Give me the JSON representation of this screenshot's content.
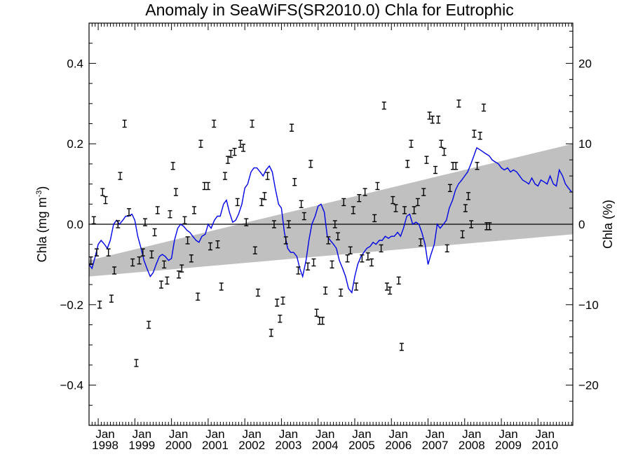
{
  "chart_data": {
    "type": "line",
    "title": "Anomaly in SeaWiFS(SR2010.0) Chla for Eutrophic",
    "ylabel_left": "Chla (mg m",
    "ylabel_left_superscript": "-3",
    "ylabel_left_suffix": ")",
    "ylabel_right": "Chla (%)",
    "xlim": [
      1997.75,
      2010.95
    ],
    "ylim": [
      -0.5,
      0.5
    ],
    "ylim_right": [
      -25,
      25
    ],
    "yticks_left": [
      {
        "value": 0.4,
        "label": "0.4"
      },
      {
        "value": 0.2,
        "label": "0.2"
      },
      {
        "value": 0.0,
        "label": "0.0"
      },
      {
        "value": -0.2,
        "label": "−0.2"
      },
      {
        "value": -0.4,
        "label": "−0.4"
      }
    ],
    "yticks_right": [
      {
        "value": 20,
        "label": "20"
      },
      {
        "value": 10,
        "label": "10"
      },
      {
        "value": 0,
        "label": "0"
      },
      {
        "value": -10,
        "label": "−10"
      },
      {
        "value": -20,
        "label": "−20"
      }
    ],
    "xticks": [
      {
        "value": 1998.0,
        "month": "Jan",
        "year": "1998"
      },
      {
        "value": 1999.0,
        "month": "Jan",
        "year": "1999"
      },
      {
        "value": 2000.0,
        "month": "Jan",
        "year": "2000"
      },
      {
        "value": 2001.0,
        "month": "Jan",
        "year": "2001"
      },
      {
        "value": 2002.0,
        "month": "Jan",
        "year": "2002"
      },
      {
        "value": 2003.0,
        "month": "Jan",
        "year": "2003"
      },
      {
        "value": 2004.0,
        "month": "Jan",
        "year": "2004"
      },
      {
        "value": 2005.0,
        "month": "Jan",
        "year": "2005"
      },
      {
        "value": 2006.0,
        "month": "Jan",
        "year": "2006"
      },
      {
        "value": 2007.0,
        "month": "Jan",
        "year": "2007"
      },
      {
        "value": 2008.0,
        "month": "Jan",
        "year": "2008"
      },
      {
        "value": 2009.0,
        "month": "Jan",
        "year": "2009"
      },
      {
        "value": 2010.0,
        "month": "Jan",
        "year": "2010"
      }
    ],
    "zero_line": 0,
    "trend_band": {
      "color": "#c0c0c0",
      "upper": [
        [
          1997.75,
          -0.09
        ],
        [
          2010.95,
          0.2
        ]
      ],
      "lower": [
        [
          1997.75,
          -0.13
        ],
        [
          2010.95,
          -0.025
        ]
      ]
    },
    "smoothed_series": {
      "color": "#0000e6",
      "points": [
        [
          1997.75,
          -0.1
        ],
        [
          1997.83,
          -0.11
        ],
        [
          1997.92,
          -0.08
        ],
        [
          1998.0,
          -0.05
        ],
        [
          1998.08,
          -0.04
        ],
        [
          1998.17,
          -0.05
        ],
        [
          1998.25,
          -0.06
        ],
        [
          1998.33,
          -0.04
        ],
        [
          1998.42,
          0.0
        ],
        [
          1998.5,
          0.01
        ],
        [
          1998.58,
          0.0
        ],
        [
          1998.67,
          0.01
        ],
        [
          1998.75,
          0.02
        ],
        [
          1998.83,
          0.02
        ],
        [
          1998.92,
          0.025
        ],
        [
          1999.0,
          0.01
        ],
        [
          1999.08,
          -0.03
        ],
        [
          1999.17,
          -0.06
        ],
        [
          1999.25,
          -0.09
        ],
        [
          1999.33,
          -0.11
        ],
        [
          1999.42,
          -0.13
        ],
        [
          1999.5,
          -0.12
        ],
        [
          1999.58,
          -0.1
        ],
        [
          1999.67,
          -0.08
        ],
        [
          1999.75,
          -0.075
        ],
        [
          1999.83,
          -0.08
        ],
        [
          1999.92,
          -0.09
        ],
        [
          2000.0,
          -0.085
        ],
        [
          2000.08,
          -0.04
        ],
        [
          2000.17,
          -0.01
        ],
        [
          2000.25,
          0.0
        ],
        [
          2000.33,
          -0.005
        ],
        [
          2000.42,
          -0.015
        ],
        [
          2000.5,
          -0.02
        ],
        [
          2000.58,
          -0.03
        ],
        [
          2000.67,
          -0.04
        ],
        [
          2000.75,
          -0.045
        ],
        [
          2000.83,
          -0.03
        ],
        [
          2000.92,
          -0.025
        ],
        [
          2001.0,
          0.0
        ],
        [
          2001.08,
          -0.01
        ],
        [
          2001.17,
          0.01
        ],
        [
          2001.25,
          0.02
        ],
        [
          2001.33,
          0.02
        ],
        [
          2001.42,
          0.05
        ],
        [
          2001.5,
          0.06
        ],
        [
          2001.58,
          0.03
        ],
        [
          2001.67,
          0.005
        ],
        [
          2001.75,
          0.01
        ],
        [
          2001.83,
          0.025
        ],
        [
          2001.92,
          0.05
        ],
        [
          2002.0,
          0.09
        ],
        [
          2002.08,
          0.1
        ],
        [
          2002.17,
          0.13
        ],
        [
          2002.25,
          0.14
        ],
        [
          2002.33,
          0.14
        ],
        [
          2002.42,
          0.13
        ],
        [
          2002.5,
          0.12
        ],
        [
          2002.58,
          0.135
        ],
        [
          2002.67,
          0.145
        ],
        [
          2002.75,
          0.13
        ],
        [
          2002.83,
          0.09
        ],
        [
          2002.92,
          0.05
        ],
        [
          2003.0,
          0.04
        ],
        [
          2003.08,
          -0.02
        ],
        [
          2003.17,
          -0.06
        ],
        [
          2003.25,
          -0.07
        ],
        [
          2003.33,
          -0.07
        ],
        [
          2003.42,
          -0.08
        ],
        [
          2003.5,
          -0.11
        ],
        [
          2003.58,
          -0.13
        ],
        [
          2003.67,
          -0.09
        ],
        [
          2003.75,
          -0.04
        ],
        [
          2003.83,
          0.0
        ],
        [
          2003.92,
          0.02
        ],
        [
          2004.0,
          0.045
        ],
        [
          2004.08,
          0.05
        ],
        [
          2004.17,
          0.03
        ],
        [
          2004.25,
          -0.03
        ],
        [
          2004.33,
          -0.04
        ],
        [
          2004.42,
          -0.05
        ],
        [
          2004.5,
          -0.06
        ],
        [
          2004.58,
          -0.09
        ],
        [
          2004.67,
          -0.11
        ],
        [
          2004.75,
          -0.13
        ],
        [
          2004.83,
          -0.16
        ],
        [
          2004.92,
          -0.17
        ],
        [
          2005.0,
          -0.13
        ],
        [
          2005.08,
          -0.1
        ],
        [
          2005.17,
          -0.08
        ],
        [
          2005.25,
          -0.07
        ],
        [
          2005.33,
          -0.06
        ],
        [
          2005.42,
          -0.055
        ],
        [
          2005.5,
          -0.045
        ],
        [
          2005.58,
          -0.05
        ],
        [
          2005.67,
          -0.04
        ],
        [
          2005.75,
          -0.04
        ],
        [
          2005.83,
          -0.03
        ],
        [
          2005.92,
          -0.035
        ],
        [
          2006.0,
          -0.03
        ],
        [
          2006.08,
          -0.03
        ],
        [
          2006.17,
          -0.02
        ],
        [
          2006.25,
          -0.03
        ],
        [
          2006.33,
          -0.01
        ],
        [
          2006.42,
          0.02
        ],
        [
          2006.5,
          0.025
        ],
        [
          2006.58,
          0.0
        ],
        [
          2006.67,
          0.005
        ],
        [
          2006.75,
          0.0
        ],
        [
          2006.83,
          -0.02
        ],
        [
          2006.92,
          -0.05
        ],
        [
          2007.0,
          -0.1
        ],
        [
          2007.08,
          -0.075
        ],
        [
          2007.17,
          -0.05
        ],
        [
          2007.25,
          0.0
        ],
        [
          2007.33,
          -0.01
        ],
        [
          2007.42,
          0.0
        ],
        [
          2007.5,
          0.01
        ],
        [
          2007.58,
          0.04
        ],
        [
          2007.67,
          0.06
        ],
        [
          2007.75,
          0.085
        ],
        [
          2007.83,
          0.1
        ],
        [
          2007.92,
          0.11
        ],
        [
          2008.0,
          0.12
        ],
        [
          2008.08,
          0.13
        ],
        [
          2008.17,
          0.15
        ],
        [
          2008.25,
          0.17
        ],
        [
          2008.33,
          0.19
        ],
        [
          2008.42,
          0.185
        ],
        [
          2008.5,
          0.18
        ],
        [
          2008.58,
          0.175
        ],
        [
          2008.67,
          0.17
        ],
        [
          2008.75,
          0.16
        ],
        [
          2008.83,
          0.155
        ],
        [
          2008.92,
          0.15
        ],
        [
          2009.0,
          0.14
        ],
        [
          2009.08,
          0.135
        ],
        [
          2009.17,
          0.14
        ],
        [
          2009.25,
          0.13
        ],
        [
          2009.33,
          0.135
        ],
        [
          2009.42,
          0.13
        ],
        [
          2009.5,
          0.12
        ],
        [
          2009.58,
          0.11
        ],
        [
          2009.67,
          0.105
        ],
        [
          2009.75,
          0.1
        ],
        [
          2009.83,
          0.115
        ],
        [
          2009.92,
          0.1
        ],
        [
          2010.0,
          0.095
        ],
        [
          2010.08,
          0.11
        ],
        [
          2010.17,
          0.105
        ],
        [
          2010.25,
          0.1
        ],
        [
          2010.33,
          0.12
        ],
        [
          2010.42,
          0.1
        ],
        [
          2010.5,
          0.095
        ],
        [
          2010.58,
          0.135
        ],
        [
          2010.67,
          0.12
        ],
        [
          2010.75,
          0.1
        ],
        [
          2010.83,
          0.09
        ],
        [
          2010.92,
          0.08
        ]
      ]
    },
    "monthly_points": [
      [
        1997.8,
        -0.09
      ],
      [
        1997.88,
        0.01
      ],
      [
        1997.96,
        -0.07
      ],
      [
        1998.04,
        -0.2
      ],
      [
        1998.12,
        0.08
      ],
      [
        1998.2,
        0.06
      ],
      [
        1998.28,
        -0.07
      ],
      [
        1998.36,
        -0.185
      ],
      [
        1998.44,
        -0.115
      ],
      [
        1998.54,
        0.0
      ],
      [
        1998.6,
        0.12
      ],
      [
        1998.72,
        0.25
      ],
      [
        1998.84,
        0.03
      ],
      [
        1998.94,
        -0.095
      ],
      [
        1999.04,
        -0.345
      ],
      [
        1999.12,
        -0.09
      ],
      [
        1999.22,
        -0.07
      ],
      [
        1999.28,
        0.005
      ],
      [
        1999.38,
        -0.25
      ],
      [
        1999.46,
        -0.075
      ],
      [
        1999.54,
        -0.02
      ],
      [
        1999.62,
        0.035
      ],
      [
        1999.72,
        -0.15
      ],
      [
        1999.8,
        -0.1
      ],
      [
        1999.88,
        -0.14
      ],
      [
        1999.96,
        0.025
      ],
      [
        2000.04,
        0.145
      ],
      [
        2000.12,
        0.08
      ],
      [
        2000.2,
        -0.125
      ],
      [
        2000.28,
        -0.11
      ],
      [
        2000.36,
        0.01
      ],
      [
        2000.44,
        -0.04
      ],
      [
        2000.54,
        -0.085
      ],
      [
        2000.62,
        0.035
      ],
      [
        2000.72,
        -0.18
      ],
      [
        2000.8,
        0.2
      ],
      [
        2000.9,
        0.095
      ],
      [
        2001.0,
        0.095
      ],
      [
        2001.06,
        -0.055
      ],
      [
        2001.16,
        0.25
      ],
      [
        2001.26,
        -0.05
      ],
      [
        2001.36,
        -0.155
      ],
      [
        2001.46,
        0.12
      ],
      [
        2001.54,
        0.16
      ],
      [
        2001.62,
        0.175
      ],
      [
        2001.72,
        0.18
      ],
      [
        2001.8,
        0.055
      ],
      [
        2001.88,
        0.2
      ],
      [
        2001.96,
        0.19
      ],
      [
        2002.04,
        0.005
      ],
      [
        2002.2,
        0.25
      ],
      [
        2002.28,
        -0.065
      ],
      [
        2002.36,
        -0.17
      ],
      [
        2002.46,
        0.055
      ],
      [
        2002.54,
        0.07
      ],
      [
        2002.62,
        0.12
      ],
      [
        2002.72,
        -0.27
      ],
      [
        2002.8,
        0.0
      ],
      [
        2002.88,
        -0.195
      ],
      [
        2002.96,
        -0.235
      ],
      [
        2003.04,
        -0.19
      ],
      [
        2003.12,
        -0.04
      ],
      [
        2003.2,
        0.0
      ],
      [
        2003.28,
        0.24
      ],
      [
        2003.36,
        0.105
      ],
      [
        2003.46,
        -0.115
      ],
      [
        2003.54,
        0.05
      ],
      [
        2003.62,
        0.02
      ],
      [
        2003.72,
        -0.105
      ],
      [
        2003.8,
        0.15
      ],
      [
        2003.88,
        -0.095
      ],
      [
        2003.96,
        -0.22
      ],
      [
        2004.04,
        -0.24
      ],
      [
        2004.12,
        -0.24
      ],
      [
        2004.2,
        -0.165
      ],
      [
        2004.28,
        -0.04
      ],
      [
        2004.38,
        -0.1
      ],
      [
        2004.46,
        0.0
      ],
      [
        2004.54,
        -0.03
      ],
      [
        2004.62,
        -0.17
      ],
      [
        2004.7,
        0.055
      ],
      [
        2004.8,
        -0.085
      ],
      [
        2004.88,
        -0.065
      ],
      [
        2004.96,
        0.035
      ],
      [
        2005.04,
        -0.155
      ],
      [
        2005.12,
        0.065
      ],
      [
        2005.2,
        -0.085
      ],
      [
        2005.28,
        0.08
      ],
      [
        2005.36,
        -0.08
      ],
      [
        2005.46,
        -0.095
      ],
      [
        2005.54,
        0.015
      ],
      [
        2005.62,
        0.095
      ],
      [
        2005.72,
        -0.06
      ],
      [
        2005.8,
        0.295
      ],
      [
        2005.88,
        -0.155
      ],
      [
        2005.96,
        -0.165
      ],
      [
        2006.04,
        0.06
      ],
      [
        2006.12,
        0.04
      ],
      [
        2006.2,
        -0.14
      ],
      [
        2006.28,
        -0.305
      ],
      [
        2006.36,
        0.035
      ],
      [
        2006.44,
        0.15
      ],
      [
        2006.54,
        0.2
      ],
      [
        2006.62,
        0.035
      ],
      [
        2006.72,
        0.055
      ],
      [
        2006.8,
        -0.045
      ],
      [
        2006.88,
        0.08
      ],
      [
        2006.96,
        0.16
      ],
      [
        2007.04,
        0.27
      ],
      [
        2007.12,
        0.26
      ],
      [
        2007.2,
        0.135
      ],
      [
        2007.28,
        0.26
      ],
      [
        2007.36,
        0.2
      ],
      [
        2007.44,
        0.18
      ],
      [
        2007.52,
        -0.06
      ],
      [
        2007.6,
        0.09
      ],
      [
        2007.68,
        0.145
      ],
      [
        2007.76,
        0.145
      ],
      [
        2007.84,
        0.3
      ],
      [
        2007.94,
        -0.025
      ],
      [
        2008.02,
        0.04
      ],
      [
        2008.1,
        0.07
      ],
      [
        2008.18,
        0.0
      ],
      [
        2008.26,
        0.225
      ],
      [
        2008.34,
        0.145
      ],
      [
        2008.42,
        0.22
      ],
      [
        2008.52,
        0.29
      ],
      [
        2008.6,
        -0.005
      ],
      [
        2008.68,
        -0.005
      ]
    ],
    "colors": {
      "smoothed_line": "#0000e6",
      "trend_band": "#c0c0c0",
      "points": "#000000"
    }
  }
}
